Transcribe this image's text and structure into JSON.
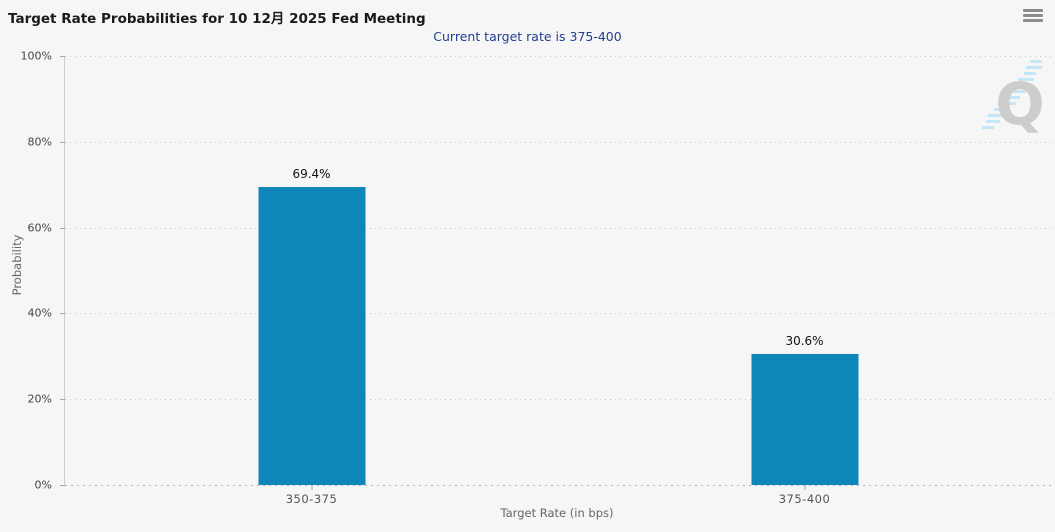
{
  "header": {
    "title": "Target Rate Probabilities for 10 12月 2025 Fed Meeting",
    "subtitle": "Current target rate is 375-400",
    "menu_icon": "hamburger-icon"
  },
  "watermark": {
    "letter": "Q"
  },
  "colors": {
    "background": "#f6f6f6",
    "bar": "#0e86ba",
    "subtitle_text": "#23408f",
    "grid": "#c6c6c6",
    "watermark_letter": "#c9c9c9",
    "watermark_dashes": "#bfe5f6"
  },
  "chart_data": {
    "type": "bar",
    "title": "Target Rate Probabilities for 10 12月 2025 Fed Meeting",
    "subtitle": "Current target rate is 375-400",
    "categories": [
      "350-375",
      "375-400"
    ],
    "values": [
      69.4,
      30.6
    ],
    "value_labels": [
      "69.4%",
      "30.6%"
    ],
    "xlabel": "Target Rate (in bps)",
    "ylabel": "Probability",
    "ylim": [
      0,
      100
    ],
    "yticks": [
      "100%",
      "80%",
      "60%",
      "40%",
      "20%",
      "0%"
    ],
    "legend": "none",
    "grid": "dotted-horizontal",
    "bar_color": "#0e86ba"
  }
}
